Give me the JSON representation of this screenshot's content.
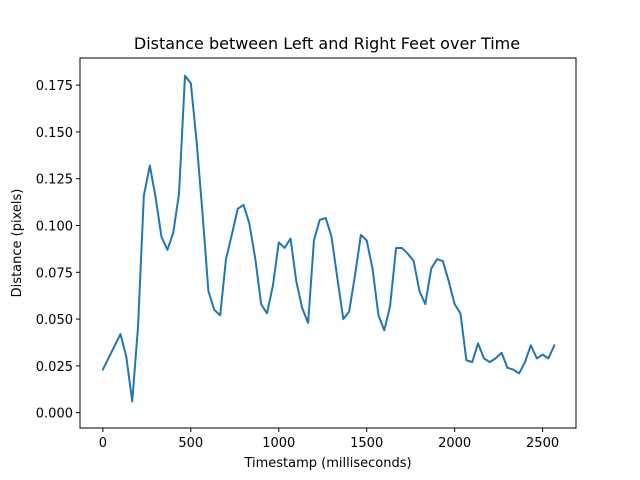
{
  "chart_data": {
    "type": "line",
    "title": "Distance between Left and Right Feet over Time",
    "xlabel": "Timestamp (milliseconds)",
    "ylabel": "Distance (pixels)",
    "xlim": [
      -130,
      2690
    ],
    "ylim": [
      -0.0082,
      0.1895
    ],
    "grid": false,
    "xticks": [
      {
        "value": 0,
        "label": "0"
      },
      {
        "value": 500,
        "label": "500"
      },
      {
        "value": 1000,
        "label": "1000"
      },
      {
        "value": 1500,
        "label": "1500"
      },
      {
        "value": 2000,
        "label": "2000"
      },
      {
        "value": 2500,
        "label": "2500"
      }
    ],
    "yticks": [
      {
        "value": 0.0,
        "label": "0.000"
      },
      {
        "value": 0.025,
        "label": "0.025"
      },
      {
        "value": 0.05,
        "label": "0.050"
      },
      {
        "value": 0.075,
        "label": "0.075"
      },
      {
        "value": 0.1,
        "label": "0.100"
      },
      {
        "value": 0.125,
        "label": "0.125"
      },
      {
        "value": 0.15,
        "label": "0.150"
      },
      {
        "value": 0.175,
        "label": "0.175"
      }
    ],
    "series": [
      {
        "color": "#1f77b4",
        "x": [
          0,
          100,
          133,
          167,
          200,
          233,
          267,
          300,
          333,
          367,
          400,
          433,
          467,
          500,
          533,
          567,
          600,
          633,
          667,
          700,
          733,
          767,
          800,
          833,
          867,
          900,
          933,
          967,
          1000,
          1033,
          1067,
          1100,
          1133,
          1167,
          1200,
          1233,
          1267,
          1300,
          1333,
          1367,
          1400,
          1433,
          1467,
          1500,
          1533,
          1567,
          1600,
          1633,
          1667,
          1700,
          1733,
          1767,
          1800,
          1833,
          1867,
          1900,
          1933,
          1967,
          2000,
          2033,
          2067,
          2100,
          2133,
          2167,
          2200,
          2233,
          2267,
          2300,
          2333,
          2367,
          2400,
          2433,
          2467,
          2500,
          2533,
          2567
        ],
        "y": [
          0.023,
          0.042,
          0.03,
          0.006,
          0.046,
          0.116,
          0.132,
          0.115,
          0.094,
          0.087,
          0.096,
          0.117,
          0.18,
          0.176,
          0.145,
          0.106,
          0.065,
          0.055,
          0.052,
          0.082,
          0.095,
          0.109,
          0.111,
          0.101,
          0.082,
          0.058,
          0.053,
          0.068,
          0.091,
          0.088,
          0.093,
          0.07,
          0.056,
          0.048,
          0.092,
          0.103,
          0.104,
          0.094,
          0.072,
          0.05,
          0.054,
          0.073,
          0.095,
          0.092,
          0.077,
          0.052,
          0.044,
          0.057,
          0.088,
          0.088,
          0.085,
          0.081,
          0.065,
          0.058,
          0.077,
          0.082,
          0.081,
          0.07,
          0.058,
          0.053,
          0.028,
          0.027,
          0.037,
          0.029,
          0.027,
          0.029,
          0.032,
          0.024,
          0.023,
          0.021,
          0.027,
          0.036,
          0.029,
          0.031,
          0.029,
          0.036
        ]
      }
    ]
  }
}
